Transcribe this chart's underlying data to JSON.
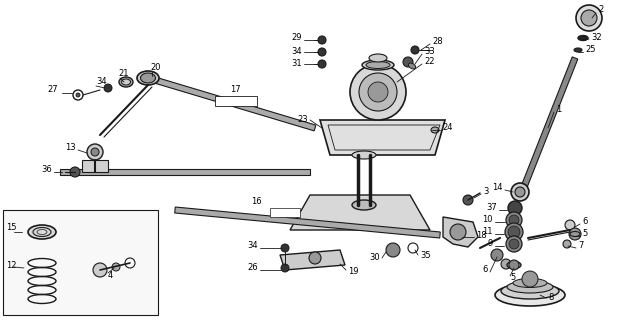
{
  "bg_color": "#ffffff",
  "line_color": "#1a1a1a",
  "figsize": [
    6.32,
    3.2
  ],
  "dpi": 100,
  "label_fontsize": 6.0
}
